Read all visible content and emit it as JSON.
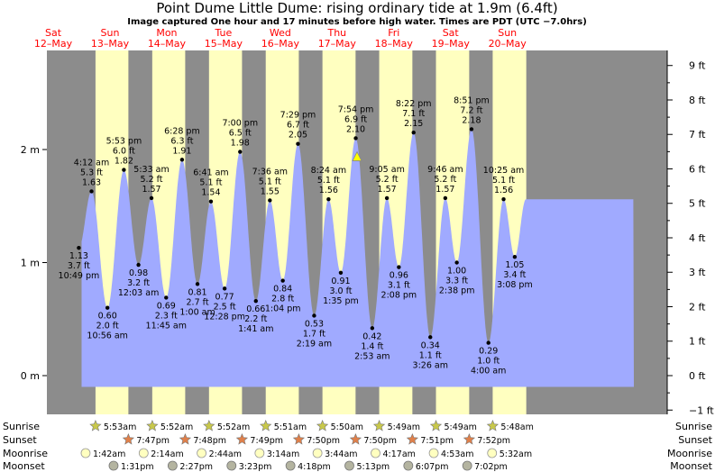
{
  "header": {
    "title": "Point Dume Little Dume: rising  ordinary tide at 1.9m (6.4ft)",
    "subtitle": "Image captured One hour and 17 minutes before high water. Times are PDT (UTC −7.0hrs)"
  },
  "colors": {
    "night": "#8c8c8c",
    "day": "#ffffc0",
    "tide_fill": "#a0aaff",
    "day_label": "#ff0000",
    "sun_marker": "#c8c84a",
    "sunset_marker": "#e0804a",
    "moonrise_marker": "#ffffc0",
    "moonset_marker": "#b4b4a0",
    "now_marker": "#ffff00"
  },
  "days": [
    {
      "dow": "Sat",
      "date": "12–May"
    },
    {
      "dow": "Sun",
      "date": "13–May"
    },
    {
      "dow": "Mon",
      "date": "14–May"
    },
    {
      "dow": "Tue",
      "date": "15–May"
    },
    {
      "dow": "Wed",
      "date": "16–May"
    },
    {
      "dow": "Thu",
      "date": "17–May"
    },
    {
      "dow": "Fri",
      "date": "18–May"
    },
    {
      "dow": "Sat",
      "date": "19–May"
    },
    {
      "dow": "Sun",
      "date": "20–May"
    }
  ],
  "chart_data": {
    "type": "area",
    "title": "Point Dume Little Dume: rising  ordinary tide at 1.9m (6.4ft)",
    "x_unit": "hours since 12-May 00:00 PDT",
    "x_range": [
      12,
      213
    ],
    "y_left_label_unit": "m",
    "y_range_m": [
      -0.33,
      2.82
    ],
    "y_left_ticks": [
      {
        "v": 0,
        "label": "0 m"
      },
      {
        "v": 1,
        "label": "1 m"
      },
      {
        "v": 2,
        "label": "2 m"
      }
    ],
    "y_right_ticks_ft": [
      "−1 ft",
      "0 ft",
      "1 ft",
      "2 ft",
      "3 ft",
      "4 ft",
      "5 ft",
      "6 ft",
      "7 ft",
      "8 ft",
      "9 ft"
    ],
    "tides": [
      {
        "time": "10:49 pm",
        "ft": "3.7 ft",
        "m": 1.13,
        "kind": "low"
      },
      {
        "time": "4:12 am",
        "ft": "5.3 ft",
        "m": 1.63,
        "kind": "high"
      },
      {
        "time": "10:56 am",
        "ft": "2.0 ft",
        "m": 0.6,
        "kind": "low"
      },
      {
        "time": "5:53 pm",
        "ft": "6.0 ft",
        "m": 1.82,
        "kind": "high"
      },
      {
        "time": "12:03 am",
        "ft": "3.2 ft",
        "m": 0.98,
        "kind": "low"
      },
      {
        "time": "5:33 am",
        "ft": "5.2 ft",
        "m": 1.57,
        "kind": "high"
      },
      {
        "time": "11:45 am",
        "ft": "2.3 ft",
        "m": 0.69,
        "kind": "low"
      },
      {
        "time": "6:28 pm",
        "ft": "6.3 ft",
        "m": 1.91,
        "kind": "high"
      },
      {
        "time": "1:00 am",
        "ft": "2.7 ft",
        "m": 0.81,
        "kind": "low"
      },
      {
        "time": "6:41 am",
        "ft": "5.1 ft",
        "m": 1.54,
        "kind": "high"
      },
      {
        "time": "12:28 pm",
        "ft": "2.5 ft",
        "m": 0.77,
        "kind": "low"
      },
      {
        "time": "7:00 pm",
        "ft": "6.5 ft",
        "m": 1.98,
        "kind": "high"
      },
      {
        "time": "1:41 am",
        "ft": "2.2 ft",
        "m": 0.66,
        "kind": "low"
      },
      {
        "time": "7:36 am",
        "ft": "5.1 ft",
        "m": 1.55,
        "kind": "high"
      },
      {
        "time": "1:04 pm",
        "ft": "2.8 ft",
        "m": 0.84,
        "kind": "low"
      },
      {
        "time": "7:29 pm",
        "ft": "6.7 ft",
        "m": 2.05,
        "kind": "high"
      },
      {
        "time": "2:19 am",
        "ft": "1.7 ft",
        "m": 0.53,
        "kind": "low"
      },
      {
        "time": "8:24 am",
        "ft": "5.1 ft",
        "m": 1.56,
        "kind": "high"
      },
      {
        "time": "1:35 pm",
        "ft": "3.0 ft",
        "m": 0.91,
        "kind": "low"
      },
      {
        "time": "7:54 pm",
        "ft": "6.9 ft",
        "m": 2.1,
        "kind": "high"
      },
      {
        "time": "2:53 am",
        "ft": "1.4 ft",
        "m": 0.42,
        "kind": "low"
      },
      {
        "time": "9:05 am",
        "ft": "5.2 ft",
        "m": 1.57,
        "kind": "high"
      },
      {
        "time": "2:08 pm",
        "ft": "3.1 ft",
        "m": 0.96,
        "kind": "low"
      },
      {
        "time": "8:22 pm",
        "ft": "7.1 ft",
        "m": 2.15,
        "kind": "high"
      },
      {
        "time": "3:26 am",
        "ft": "1.1 ft",
        "m": 0.34,
        "kind": "low"
      },
      {
        "time": "9:46 am",
        "ft": "5.2 ft",
        "m": 1.57,
        "kind": "high"
      },
      {
        "time": "2:38 pm",
        "ft": "3.3 ft",
        "m": 1.0,
        "kind": "low"
      },
      {
        "time": "8:51 pm",
        "ft": "7.2 ft",
        "m": 2.18,
        "kind": "high"
      },
      {
        "time": "4:00 am",
        "ft": "1.0 ft",
        "m": 0.29,
        "kind": "low"
      },
      {
        "time": "10:25 am",
        "ft": "5.1 ft",
        "m": 1.56,
        "kind": "high"
      },
      {
        "time": "3:08 pm",
        "ft": "3.4 ft",
        "m": 1.05,
        "kind": "low"
      }
    ],
    "tide_hours": [
      22.82,
      28.2,
      34.93,
      41.88,
      48.05,
      53.55,
      59.75,
      66.47,
      73.0,
      78.68,
      84.47,
      91.0,
      97.68,
      103.6,
      109.07,
      115.48,
      122.32,
      128.4,
      133.58,
      139.9,
      146.88,
      153.08,
      158.13,
      164.37,
      171.43,
      177.77,
      182.63,
      188.85,
      196.0,
      202.42,
      207.13
    ],
    "now_m": 1.9
  },
  "almanac": {
    "row_labels": [
      "Sunrise",
      "Sunset",
      "Moonrise",
      "Moonset"
    ],
    "sunrise": [
      "5:53am",
      "5:52am",
      "5:52am",
      "5:51am",
      "5:50am",
      "5:49am",
      "5:49am",
      "5:48am"
    ],
    "sunset": [
      "7:47pm",
      "7:48pm",
      "7:49pm",
      "7:50pm",
      "7:50pm",
      "7:51pm",
      "7:52pm"
    ],
    "moonrise": [
      "1:42am",
      "2:14am",
      "2:44am",
      "3:14am",
      "3:44am",
      "4:17am",
      "4:53am",
      "5:32am"
    ],
    "moonset": [
      "1:31pm",
      "2:27pm",
      "3:23pm",
      "4:18pm",
      "5:13pm",
      "6:07pm",
      "7:02pm"
    ]
  }
}
